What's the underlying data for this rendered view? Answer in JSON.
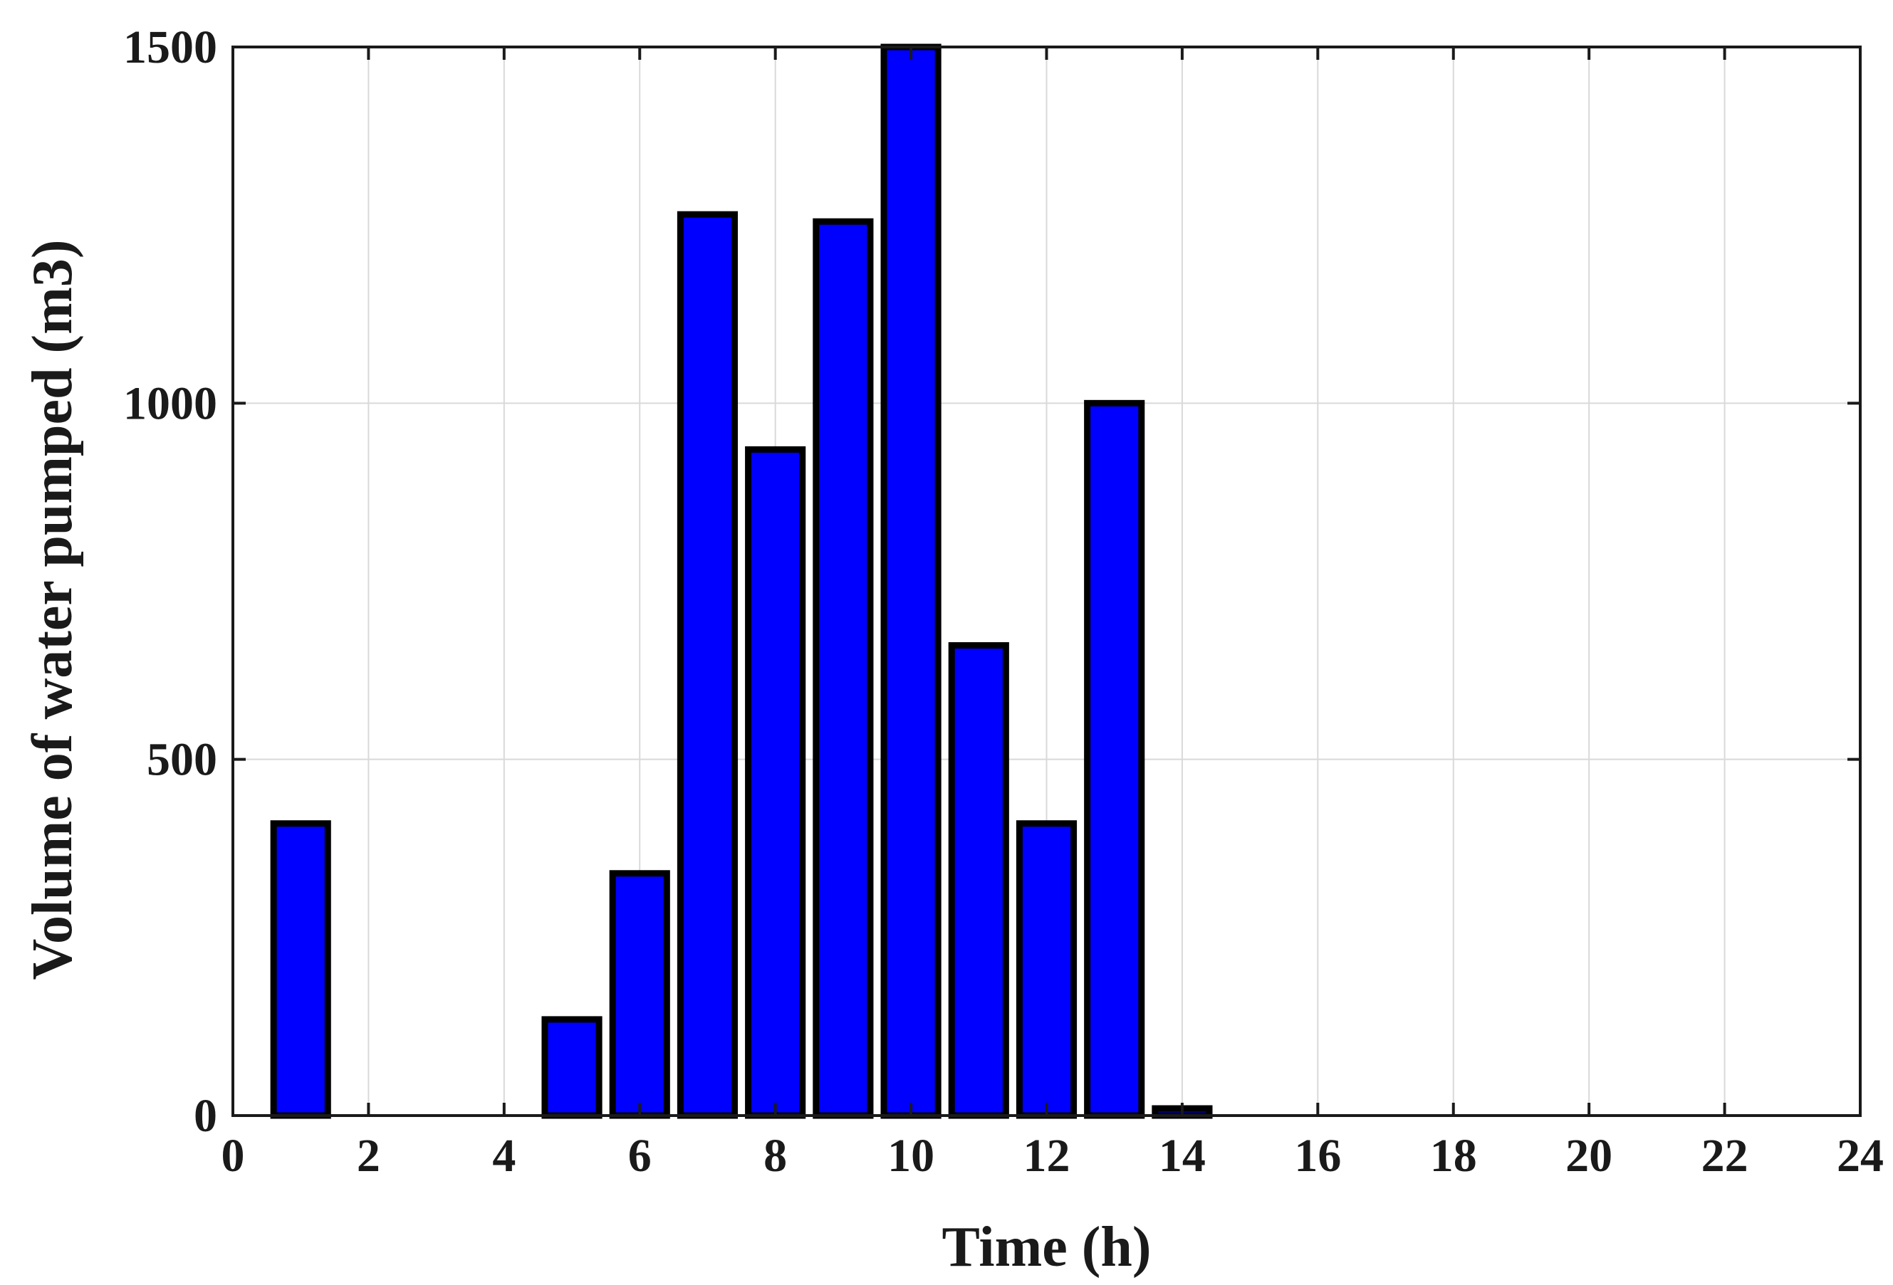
{
  "chart_data": {
    "type": "bar",
    "title": "",
    "xlabel": "Time (h)",
    "ylabel": "Volume of water pumped (m3)",
    "x": [
      1,
      2,
      3,
      4,
      5,
      6,
      7,
      8,
      9,
      10,
      11,
      12,
      13,
      14,
      15,
      16,
      17,
      18,
      19,
      20,
      21,
      22,
      23,
      24
    ],
    "values": [
      410,
      0,
      0,
      0,
      135,
      340,
      1265,
      935,
      1255,
      1500,
      660,
      410,
      1000,
      10,
      0,
      0,
      0,
      0,
      0,
      0,
      0,
      0,
      0,
      0
    ],
    "xlim": [
      0,
      24
    ],
    "ylim": [
      0,
      1500
    ],
    "xticks": [
      0,
      2,
      4,
      6,
      8,
      10,
      12,
      14,
      16,
      18,
      20,
      22,
      24
    ],
    "yticks": [
      0,
      500,
      1000,
      1500
    ],
    "grid": true,
    "bar_color": "#0000ff",
    "edge_color": "#000000"
  }
}
